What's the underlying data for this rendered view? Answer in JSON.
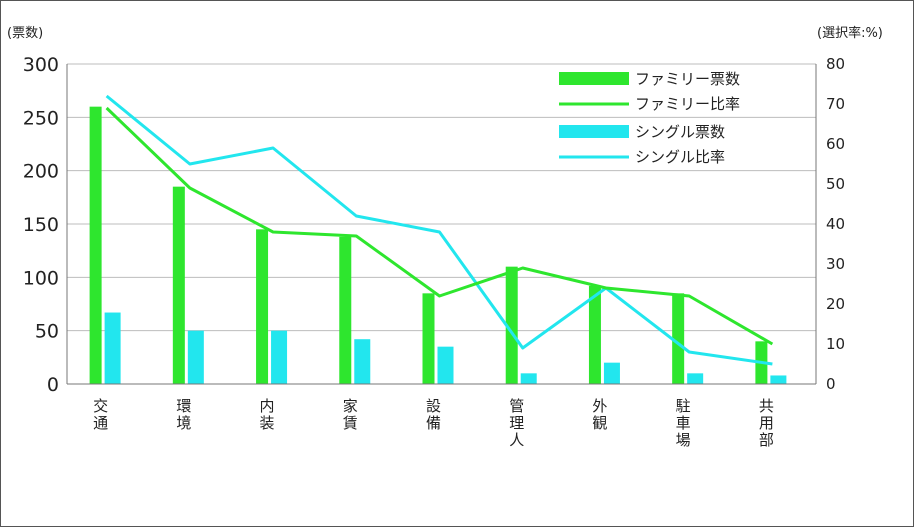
{
  "chart_data": {
    "type": "bar",
    "categories": [
      "交通",
      "環境",
      "内装",
      "家賃",
      "設備",
      "管理人",
      "外観",
      "駐車場",
      "共用部"
    ],
    "left_axis": {
      "unit_label": "(票数)",
      "ylim": [
        0,
        300
      ],
      "ticks": [
        "0",
        "50",
        "100",
        "150",
        "200",
        "250",
        "300"
      ]
    },
    "right_axis": {
      "unit_label": "(選択率:%)",
      "ylim": [
        0,
        80
      ],
      "ticks": [
        "0",
        "10",
        "20",
        "30",
        "40",
        "50",
        "60",
        "70",
        "80"
      ]
    },
    "grid": "horizontal at left-axis ticks",
    "legend_position": "top-right",
    "series": [
      {
        "name": "ファミリー票数",
        "kind": "bar",
        "axis": "left",
        "color": "#2ee62e",
        "values": [
          260,
          185,
          145,
          138,
          85,
          110,
          92,
          85,
          40
        ]
      },
      {
        "name": "ファミリー比率",
        "kind": "line",
        "axis": "right",
        "color": "#2ee62e",
        "values": [
          69,
          49,
          38,
          37,
          22,
          29,
          24,
          22,
          10
        ]
      },
      {
        "name": "シングル票数",
        "kind": "bar",
        "axis": "left",
        "color": "#22e6ee",
        "values": [
          67,
          50,
          50,
          42,
          35,
          10,
          20,
          10,
          8
        ]
      },
      {
        "name": "シングル比率",
        "kind": "line",
        "axis": "right",
        "color": "#22e6ee",
        "values": [
          72,
          55,
          59,
          42,
          38,
          9,
          24,
          8,
          5
        ]
      }
    ]
  }
}
